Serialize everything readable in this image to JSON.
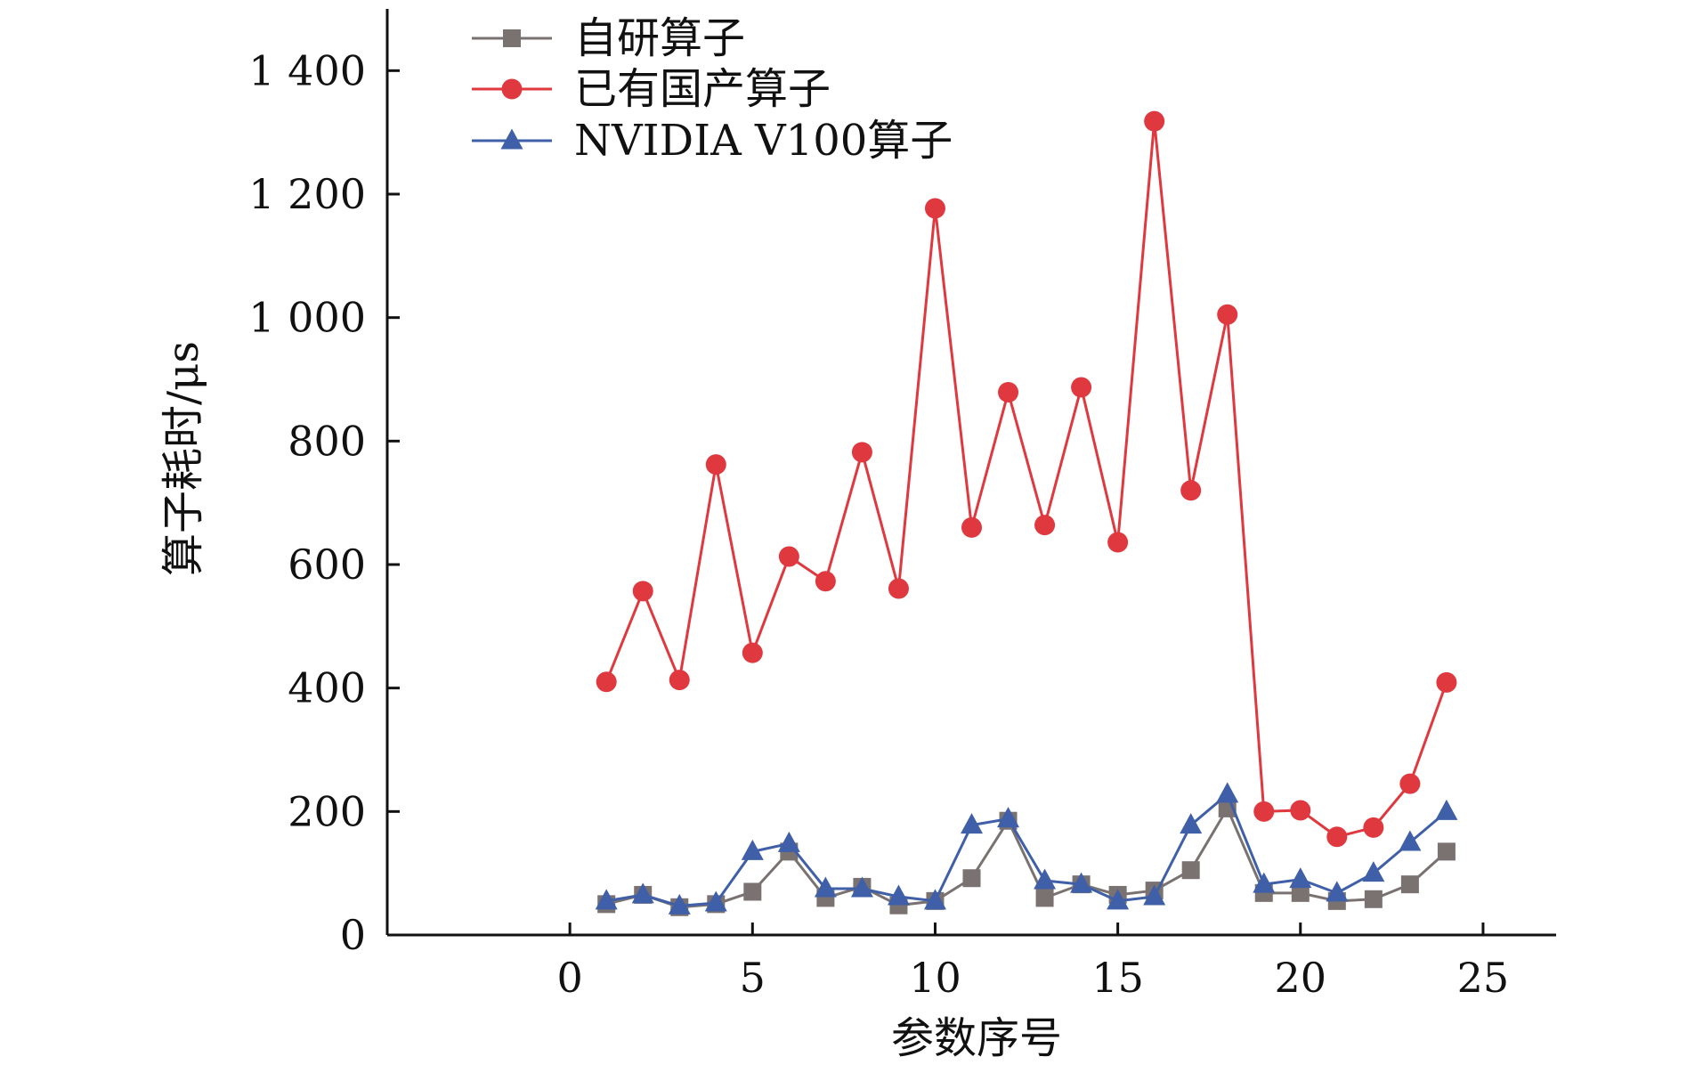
{
  "chart_data": {
    "type": "line",
    "xlabel": "参数序号",
    "ylabel": "算子耗时/μs",
    "xlim": [
      -5,
      27
    ],
    "ylim": [
      0,
      1500
    ],
    "xticks": [
      0,
      5,
      10,
      15,
      20,
      25
    ],
    "xtick_labels": [
      "0",
      "5",
      "10",
      "15",
      "20",
      "25"
    ],
    "yticks": [
      0,
      200,
      400,
      600,
      800,
      1000,
      1200,
      1400
    ],
    "ytick_labels": [
      "0",
      "200",
      "400",
      "600",
      "800",
      "1 000",
      "1 200",
      "1 400"
    ],
    "grid": false,
    "legend_position": "top-left",
    "x": [
      1,
      2,
      3,
      4,
      5,
      6,
      7,
      8,
      9,
      10,
      11,
      12,
      13,
      14,
      15,
      16,
      17,
      18,
      19,
      20,
      21,
      22,
      23,
      24
    ],
    "series": [
      {
        "name": "自研算子",
        "color": "#7a7270",
        "marker": "square",
        "values": [
          50,
          65,
          45,
          50,
          70,
          135,
          60,
          78,
          48,
          55,
          92,
          185,
          60,
          82,
          65,
          72,
          105,
          205,
          68,
          68,
          55,
          58,
          82,
          135
        ]
      },
      {
        "name": "已有国产算子",
        "color": "#e0383f",
        "marker": "circle",
        "values": [
          410,
          557,
          413,
          762,
          457,
          613,
          573,
          782,
          561,
          1177,
          660,
          879,
          664,
          887,
          636,
          1318,
          720,
          1005,
          200,
          202,
          159,
          174,
          245,
          409
        ]
      },
      {
        "name": "NVIDIA V100算子",
        "color": "#3f5fa8",
        "marker": "triangle",
        "values": [
          55,
          65,
          47,
          52,
          135,
          148,
          75,
          75,
          62,
          55,
          178,
          188,
          88,
          82,
          55,
          62,
          178,
          228,
          82,
          90,
          68,
          100,
          150,
          200
        ]
      }
    ]
  }
}
